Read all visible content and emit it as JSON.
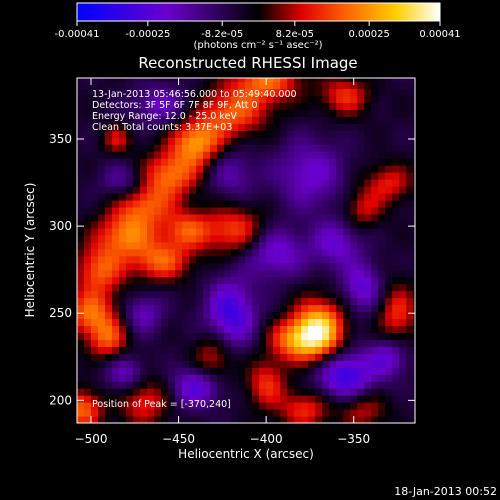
{
  "colorbar": {
    "tick_labels": [
      "-0.00041",
      "-0.00025",
      "-8.2e-05",
      "8.2e-05",
      "0.00025",
      "0.00041"
    ],
    "tick_values": [
      -0.00041,
      -0.00025,
      -8.2e-05,
      8.2e-05,
      0.00025,
      0.00041
    ],
    "range": [
      -0.00041,
      0.00041
    ],
    "unit_text": "(photons cm⁻² s⁻¹ asec⁻²)",
    "colors": [
      "#0000ff",
      "#6a00cc",
      "#000000",
      "#e00000",
      "#ff6a00",
      "#ffd000",
      "#ffffff"
    ]
  },
  "footer": {
    "timestamp": "18-Jan-2013 00:52"
  },
  "chart_data": {
    "type": "heatmap",
    "title": "Reconstructed RHESSI Image",
    "xlabel": "Heliocentric X (arcsec)",
    "ylabel": "Heliocentric Y (arcsec)",
    "xlim": [
      -508,
      -315
    ],
    "ylim": [
      187,
      385
    ],
    "xticks": [
      -500,
      -450,
      -400,
      -350
    ],
    "yticks": [
      200,
      250,
      300,
      350
    ],
    "annotations": [
      "13-Jan-2013 05:46:56.000 to 05:49:40.000",
      "Detectors: 3F 5F 6F 7F 8F 9F, Att 0",
      "Energy Range: 12.0 - 25.0 keV",
      "Clean    Total counts: 3.37E+03"
    ],
    "peak": {
      "label": "Position of Peak = [-370,240]",
      "x": -370,
      "y": 240
    },
    "features": [
      {
        "x": -370,
        "y": 240,
        "amp": 1.0,
        "sx": 10,
        "sy": 12
      },
      {
        "x": -385,
        "y": 235,
        "amp": 0.55,
        "sx": 10,
        "sy": 8
      },
      {
        "x": -400,
        "y": 385,
        "amp": 0.6,
        "sx": 14,
        "sy": 10
      },
      {
        "x": -420,
        "y": 365,
        "amp": 0.55,
        "sx": 14,
        "sy": 10
      },
      {
        "x": -440,
        "y": 348,
        "amp": 0.7,
        "sx": 10,
        "sy": 9
      },
      {
        "x": -455,
        "y": 330,
        "amp": 0.6,
        "sx": 12,
        "sy": 9
      },
      {
        "x": -470,
        "y": 313,
        "amp": 0.55,
        "sx": 12,
        "sy": 9
      },
      {
        "x": -480,
        "y": 295,
        "amp": 0.6,
        "sx": 12,
        "sy": 9
      },
      {
        "x": -495,
        "y": 275,
        "amp": 0.55,
        "sx": 10,
        "sy": 10
      },
      {
        "x": -500,
        "y": 250,
        "amp": 0.6,
        "sx": 10,
        "sy": 9
      },
      {
        "x": -490,
        "y": 235,
        "amp": 0.5,
        "sx": 8,
        "sy": 8
      },
      {
        "x": -460,
        "y": 280,
        "amp": 0.55,
        "sx": 12,
        "sy": 8
      },
      {
        "x": -445,
        "y": 298,
        "amp": 0.5,
        "sx": 10,
        "sy": 8
      },
      {
        "x": -418,
        "y": 298,
        "amp": 0.5,
        "sx": 12,
        "sy": 10
      },
      {
        "x": -470,
        "y": 200,
        "amp": 0.45,
        "sx": 10,
        "sy": 10
      },
      {
        "x": -505,
        "y": 195,
        "amp": 0.6,
        "sx": 8,
        "sy": 8
      },
      {
        "x": -430,
        "y": 225,
        "amp": 0.4,
        "sx": 8,
        "sy": 10
      },
      {
        "x": -400,
        "y": 210,
        "amp": 0.45,
        "sx": 8,
        "sy": 10
      },
      {
        "x": -378,
        "y": 195,
        "amp": 0.45,
        "sx": 10,
        "sy": 8
      },
      {
        "x": -345,
        "y": 195,
        "amp": 0.35,
        "sx": 10,
        "sy": 8
      },
      {
        "x": -325,
        "y": 250,
        "amp": 0.45,
        "sx": 8,
        "sy": 12
      },
      {
        "x": -330,
        "y": 325,
        "amp": 0.4,
        "sx": 10,
        "sy": 8
      },
      {
        "x": -345,
        "y": 310,
        "amp": 0.35,
        "sx": 8,
        "sy": 8
      },
      {
        "x": -355,
        "y": 375,
        "amp": 0.45,
        "sx": 10,
        "sy": 8
      },
      {
        "x": -485,
        "y": 350,
        "amp": 0.35,
        "sx": 6,
        "sy": 6
      },
      {
        "x": -420,
        "y": 250,
        "amp": -0.6,
        "sx": 10,
        "sy": 14
      },
      {
        "x": -355,
        "y": 215,
        "amp": -0.65,
        "sx": 12,
        "sy": 10
      },
      {
        "x": -440,
        "y": 208,
        "amp": -0.5,
        "sx": 10,
        "sy": 8
      },
      {
        "x": -395,
        "y": 285,
        "amp": -0.45,
        "sx": 12,
        "sy": 10
      },
      {
        "x": -345,
        "y": 265,
        "amp": -0.45,
        "sx": 8,
        "sy": 10
      },
      {
        "x": -480,
        "y": 215,
        "amp": -0.4,
        "sx": 8,
        "sy": 8
      },
      {
        "x": -470,
        "y": 250,
        "amp": -0.35,
        "sx": 8,
        "sy": 8
      },
      {
        "x": -375,
        "y": 330,
        "amp": -0.4,
        "sx": 14,
        "sy": 14
      },
      {
        "x": -360,
        "y": 290,
        "amp": -0.4,
        "sx": 10,
        "sy": 10
      },
      {
        "x": -480,
        "y": 325,
        "amp": -0.35,
        "sx": 10,
        "sy": 8
      },
      {
        "x": -460,
        "y": 370,
        "amp": -0.35,
        "sx": 12,
        "sy": 8
      },
      {
        "x": -420,
        "y": 330,
        "amp": -0.3,
        "sx": 10,
        "sy": 10
      },
      {
        "x": -330,
        "y": 225,
        "amp": -0.4,
        "sx": 8,
        "sy": 8
      }
    ]
  }
}
